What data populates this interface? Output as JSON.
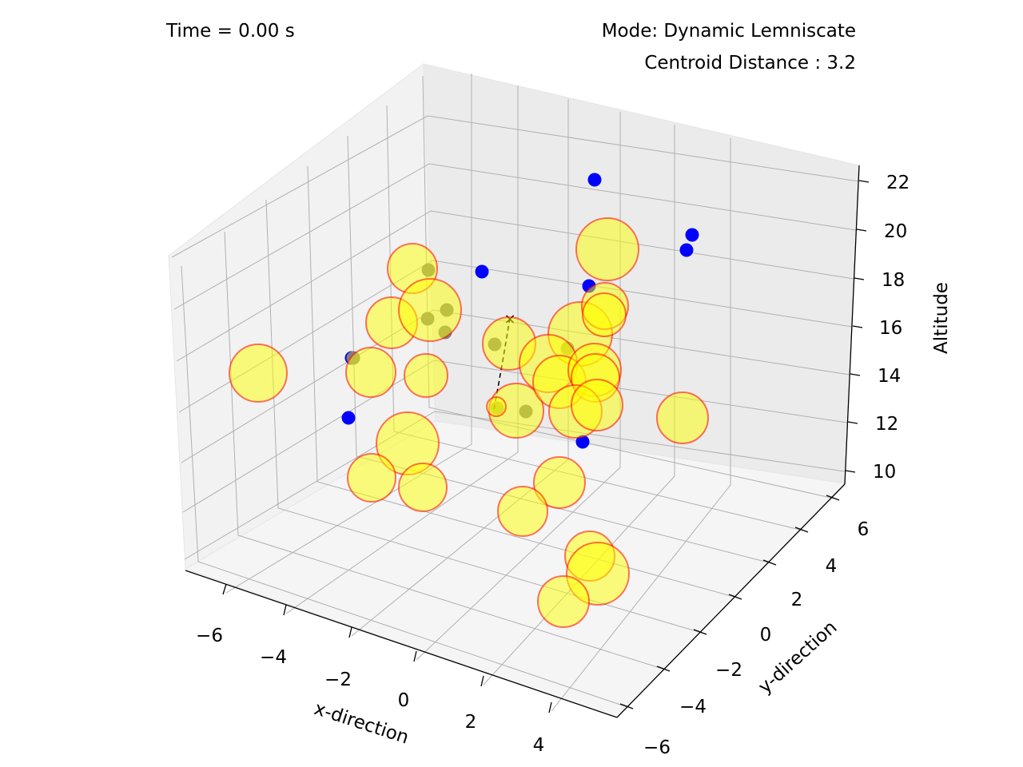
{
  "header": {
    "time_text": "Time = 0.00 s",
    "mode_text": "Mode: Dynamic Lemniscate",
    "centroid_text": "Centroid Distance : 3.2"
  },
  "chart_data": {
    "type": "scatter",
    "projection": "3d",
    "xlabel": "x-direction",
    "ylabel": "y-direction",
    "zlabel": "Altitude",
    "xlim": [
      -7,
      5.5
    ],
    "ylim": [
      -6.5,
      6.5
    ],
    "zlim": [
      9.5,
      22.5
    ],
    "x_ticks": [
      "−6",
      "−4",
      "−2",
      "0",
      "2",
      "4"
    ],
    "y_ticks": [
      "−6",
      "−4",
      "−2",
      "0",
      "2",
      "4",
      "6"
    ],
    "z_ticks": [
      "10",
      "12",
      "14",
      "16",
      "18",
      "20",
      "22"
    ],
    "grid": true,
    "colors": {
      "blue_points": "#0000ff",
      "grey_points": "#808080",
      "sphere_fill": "#ffff00",
      "sphere_edge": "#ff0000",
      "path_line": "#000000"
    },
    "series": [
      {
        "marker": "blue-dot",
        "points": [
          [
            3.0,
            5.5,
            21.5
          ],
          [
            4.5,
            5.5,
            21.0
          ],
          [
            4.5,
            5.0,
            20.5
          ],
          [
            -1.5,
            4.0,
            18.5
          ],
          [
            2.0,
            2.5,
            17.5
          ],
          [
            -4.5,
            -2.0,
            15.0
          ],
          [
            -4.0,
            -4.0,
            13.0
          ],
          [
            3.0,
            -1.5,
            12.0
          ]
        ]
      },
      {
        "marker": "grey-dot",
        "points": [
          [
            -3.0,
            1.5,
            18.0
          ],
          [
            -3.5,
            0.0,
            17.0
          ],
          [
            -3.0,
            1.0,
            17.5
          ],
          [
            -3.0,
            0.5,
            16.5
          ],
          [
            1.0,
            1.5,
            15.5
          ],
          [
            -0.5,
            -1.0,
            15.5
          ],
          [
            -0.5,
            -1.5,
            13.5
          ],
          [
            -4.5,
            -2.0,
            15.0
          ],
          [
            1.0,
            -1.0,
            13.5
          ]
        ]
      },
      {
        "marker": "yellow-sphere",
        "points": [
          [
            -6.5,
            -4.5,
            16.5
          ],
          [
            -3.5,
            1.0,
            18.5
          ],
          [
            -4.0,
            -1.5,
            17.5
          ],
          [
            -3.0,
            0.0,
            17.5
          ],
          [
            -4.0,
            -3.0,
            15.0
          ],
          [
            -3.0,
            -1.0,
            15.0
          ],
          [
            -3.0,
            -3.5,
            12.5
          ],
          [
            -3.0,
            -6.0,
            12.5
          ],
          [
            -2.0,
            -5.0,
            11.5
          ],
          [
            -0.5,
            -1.0,
            15.0
          ],
          [
            0.0,
            -0.5,
            15.5
          ],
          [
            0.5,
            0.5,
            15.5
          ],
          [
            1.0,
            1.0,
            16.0
          ],
          [
            1.0,
            0.0,
            14.5
          ],
          [
            0.5,
            -1.5,
            13.5
          ],
          [
            1.5,
            0.0,
            15.5
          ],
          [
            1.5,
            -0.5,
            14.5
          ],
          [
            2.0,
            0.0,
            15.0
          ],
          [
            2.0,
            -0.5,
            14.0
          ],
          [
            2.5,
            3.5,
            19.5
          ],
          [
            2.5,
            2.0,
            17.5
          ],
          [
            3.0,
            1.5,
            16.5
          ],
          [
            2.0,
            1.0,
            16.5
          ],
          [
            2.0,
            -2.0,
            12.5
          ],
          [
            3.5,
            -1.0,
            13.0
          ],
          [
            4.5,
            1.0,
            13.5
          ],
          [
            1.0,
            -3.5,
            10.5
          ],
          [
            2.5,
            -4.0,
            10.0
          ],
          [
            0.0,
            -3.5,
            10.0
          ],
          [
            3.0,
            -5.5,
            10.0
          ],
          [
            2.5,
            -5.5,
            9.5
          ],
          [
            -1.5,
            -1.5,
            13.0
          ]
        ]
      },
      {
        "marker": "dashed-path",
        "points": [
          [
            0.0,
            0.0,
            16.5
          ],
          [
            -0.5,
            -0.5,
            14.5
          ],
          [
            -1.0,
            -1.0,
            13.0
          ]
        ]
      }
    ]
  }
}
